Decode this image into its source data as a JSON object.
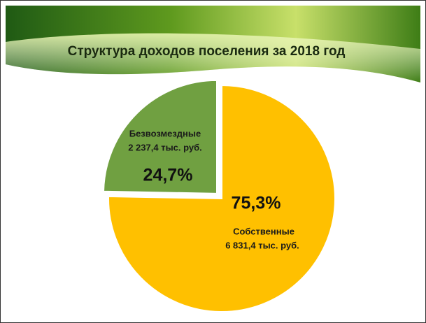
{
  "chart_data": {
    "type": "pie",
    "title": "Структура доходов поселения за 2018 год",
    "categories": [
      "Собственные",
      "Безвозмездные"
    ],
    "details": [
      "6 831,4 тыс. руб.",
      "2 237,4 тыс. руб."
    ],
    "values": [
      75.3,
      24.7
    ],
    "value_labels": [
      "75,3%",
      "24,7%"
    ],
    "colors": [
      "#FFC000",
      "#70A041"
    ],
    "exploded": [
      false,
      true
    ]
  }
}
